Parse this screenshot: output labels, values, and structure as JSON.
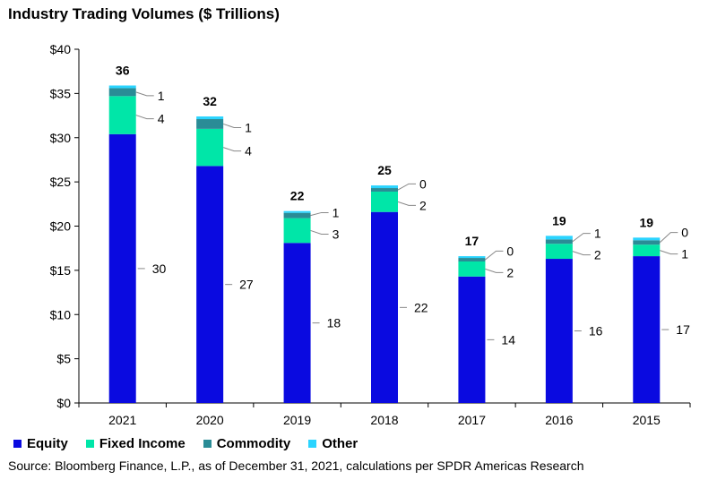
{
  "chart_data": {
    "type": "bar",
    "stacked": true,
    "title": "Industry Trading Volumes ($ Trillions)",
    "categories": [
      "2021",
      "2020",
      "2019",
      "2018",
      "2017",
      "2016",
      "2015"
    ],
    "totals": [
      "36",
      "32",
      "22",
      "25",
      "17",
      "19",
      "19"
    ],
    "series": [
      {
        "name": "Equity",
        "color": "#0a0ae0",
        "values": [
          30.4,
          26.8,
          18.1,
          21.6,
          14.3,
          16.3,
          16.6
        ],
        "labels": [
          "30",
          "27",
          "18",
          "22",
          "14",
          "16",
          "17"
        ]
      },
      {
        "name": "Fixed Income",
        "color": "#00e6a8",
        "values": [
          4.3,
          4.2,
          2.8,
          2.3,
          1.7,
          1.7,
          1.3
        ],
        "labels": [
          "4",
          "4",
          "3",
          "2",
          "2",
          "2",
          "1"
        ]
      },
      {
        "name": "Commodity",
        "color": "#2a8c96",
        "values": [
          0.9,
          1.1,
          0.6,
          0.4,
          0.4,
          0.5,
          0.5
        ],
        "labels": [
          "1",
          "1",
          "1",
          "0",
          "0",
          "1",
          "0"
        ]
      },
      {
        "name": "Other",
        "color": "#2ad4ff",
        "values": [
          0.3,
          0.3,
          0.2,
          0.3,
          0.2,
          0.4,
          0.3
        ],
        "labels": [
          null,
          null,
          null,
          null,
          null,
          null,
          null
        ]
      }
    ],
    "y_ticks": [
      "$0",
      "$5",
      "$10",
      "$15",
      "$20",
      "$25",
      "$30",
      "$35",
      "$40"
    ],
    "ylim": [
      0,
      40
    ],
    "xlabel": "",
    "ylabel": "",
    "legend": "bottom-left",
    "grid": false
  },
  "source": "Source: Bloomberg Finance, L.P., as of December 31, 2021, calculations per SPDR Americas Research"
}
